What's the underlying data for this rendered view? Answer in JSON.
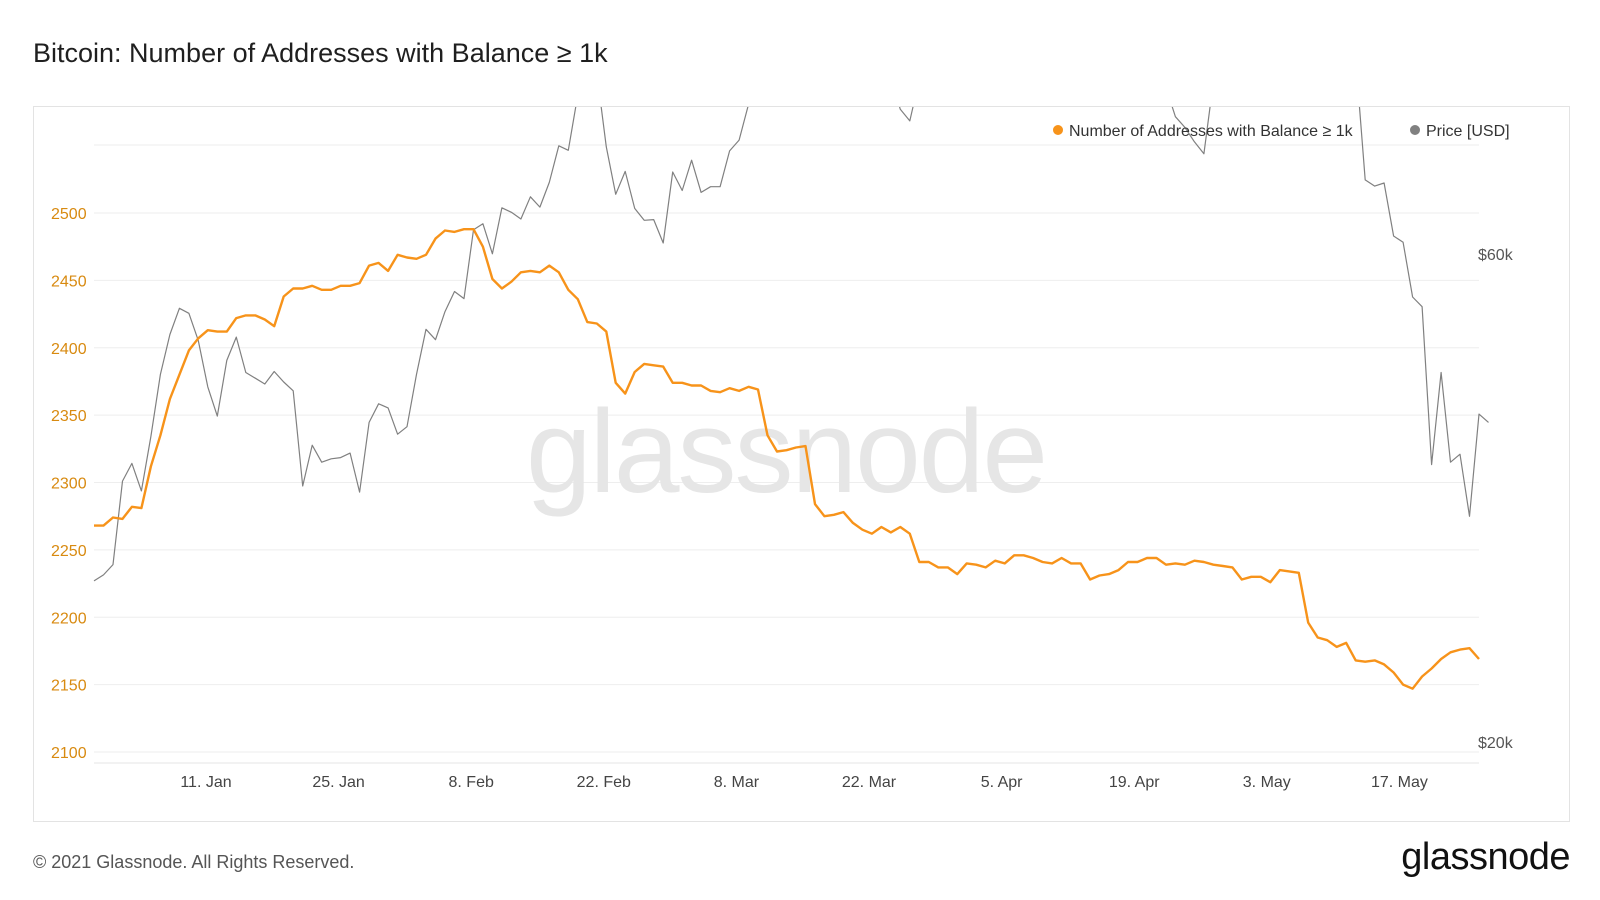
{
  "title": "Bitcoin: Number of Addresses with Balance ≥ 1k",
  "footer": "© 2021 Glassnode. All Rights Reserved.",
  "brand": "glassnode",
  "watermark": "glassnode",
  "colors": {
    "series_addresses": "#f7931a",
    "series_price": "#808080",
    "left_axis_labels": "#d88a10",
    "grid": "#eeeeee"
  },
  "chart_data": {
    "type": "line",
    "grid": true,
    "legend_position": "top-right",
    "x_ticks": [
      "11. Jan",
      "25. Jan",
      "8. Feb",
      "22. Feb",
      "8. Mar",
      "22. Mar",
      "5. Apr",
      "19. Apr",
      "3. May",
      "17. May"
    ],
    "y_left": {
      "ticks": [
        2100,
        2150,
        2200,
        2250,
        2300,
        2350,
        2400,
        2450,
        2500
      ]
    },
    "y_right": {
      "ticks": [
        "$20k",
        "$60k"
      ],
      "scale": "log"
    },
    "series": [
      {
        "name": "Number of Addresses with Balance ≥ 1k",
        "axis": "left",
        "values": [
          2268,
          2268,
          2274,
          2273,
          2282,
          2281,
          2312,
          2335,
          2362,
          2380,
          2398,
          2407,
          2413,
          2412,
          2412,
          2422,
          2424,
          2424,
          2421,
          2416,
          2438,
          2444,
          2444,
          2446,
          2443,
          2443,
          2446,
          2446,
          2448,
          2461,
          2463,
          2457,
          2469,
          2467,
          2466,
          2469,
          2481,
          2487,
          2486,
          2488,
          2488,
          2475,
          2451,
          2444,
          2449,
          2456,
          2457,
          2456,
          2461,
          2456,
          2443,
          2436,
          2419,
          2418,
          2412,
          2374,
          2366,
          2382,
          2388,
          2387,
          2386,
          2374,
          2374,
          2372,
          2372,
          2368,
          2367,
          2370,
          2368,
          2371,
          2369,
          2335,
          2323,
          2324,
          2326,
          2327,
          2284,
          2275,
          2276,
          2278,
          2270,
          2265,
          2262,
          2267,
          2263,
          2267,
          2262,
          2241,
          2241,
          2237,
          2237,
          2232,
          2240,
          2239,
          2237,
          2242,
          2240,
          2246,
          2246,
          2244,
          2241,
          2240,
          2244,
          2240,
          2240,
          2228,
          2231,
          2232,
          2235,
          2241,
          2241,
          2244,
          2244,
          2239,
          2240,
          2239,
          2242,
          2241,
          2239,
          2238,
          2237,
          2228,
          2230,
          2230,
          2226,
          2235,
          2234,
          2233,
          2196,
          2185,
          2183,
          2178,
          2181,
          2168,
          2167,
          2168,
          2165,
          2159,
          2150,
          2147,
          2156,
          2162,
          2169,
          2174,
          2176,
          2177,
          2169
        ]
      },
      {
        "name": "Price [USD]",
        "axis": "right",
        "values": [
          29400,
          29800,
          30500,
          36800,
          38300,
          36000,
          40700,
          46800,
          51200,
          54300,
          53700,
          50500,
          45500,
          42600,
          48300,
          50900,
          47000,
          46400,
          45800,
          47100,
          46000,
          45100,
          36400,
          39900,
          38400,
          38700,
          38800,
          39200,
          35900,
          42000,
          43800,
          43400,
          40900,
          41600,
          46800,
          51800,
          50600,
          53900,
          56400,
          55500,
          64800,
          65700,
          61400,
          68100,
          67400,
          66400,
          69800,
          68200,
          72100,
          78300,
          77500,
          87800,
          89000,
          92300,
          78100,
          70200,
          73900,
          68000,
          66200,
          66300,
          62900,
          73800,
          70800,
          75800,
          70500,
          71400,
          71400,
          77400,
          79300,
          86000,
          89300,
          93800,
          99000,
          98200,
          109000,
          104000,
          93200,
          95200,
          101000,
          98400,
          99700,
          99900,
          97600,
          90000,
          91200,
          85000,
          82800,
          90900,
          92700,
          92500,
          97500,
          100500,
          100800,
          100800,
          101600,
          98600,
          100400,
          100600,
          97200,
          93000,
          98300,
          98300,
          102000,
          103800,
          103200,
          114000,
          112800,
          113700,
          107600,
          105000,
          93200,
          92000,
          94300,
          89300,
          83600,
          81600,
          79000,
          76900,
          90500,
          92300,
          91900,
          88500,
          97400,
          97400,
          94600,
          95800,
          87600,
          96400,
          94300,
          97600,
          101300,
          100000,
          92600,
          95200,
          72500,
          71500,
          72000,
          63900,
          63000,
          55700,
          54500,
          38200,
          47000,
          38400,
          39100,
          34000,
          42800,
          42000
        ]
      }
    ]
  }
}
